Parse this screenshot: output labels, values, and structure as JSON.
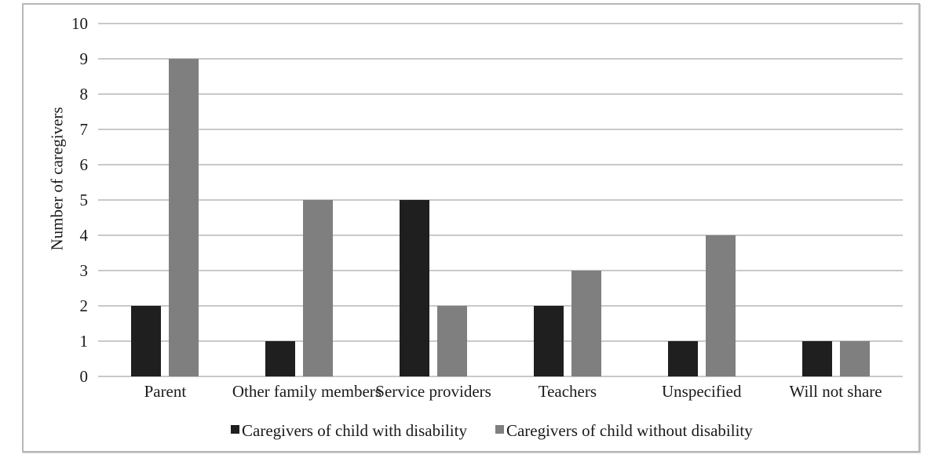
{
  "figure": {
    "background": "#ffffff",
    "frame_border_color": "#b7b7b7"
  },
  "chart_data": {
    "type": "bar",
    "categories": [
      "Parent",
      "Other family members",
      "Service providers",
      "Teachers",
      "Unspecified",
      "Will not share"
    ],
    "series": [
      {
        "name": "Caregivers of child with disability",
        "color": "#1f1f1f",
        "values": [
          2,
          1,
          5,
          2,
          1,
          1
        ]
      },
      {
        "name": "Caregivers of child without disability",
        "color": "#7f7f7f",
        "values": [
          9,
          5,
          2,
          3,
          4,
          1
        ]
      }
    ],
    "ylabel": "Number of caregivers",
    "ylim": [
      0,
      10
    ],
    "yticks": [
      0,
      1,
      2,
      3,
      4,
      5,
      6,
      7,
      8,
      9,
      10
    ],
    "grid": true,
    "gridline_color": "#c9c9c9",
    "text_color": "#1a1a1a",
    "legend_position": "bottom-center"
  }
}
